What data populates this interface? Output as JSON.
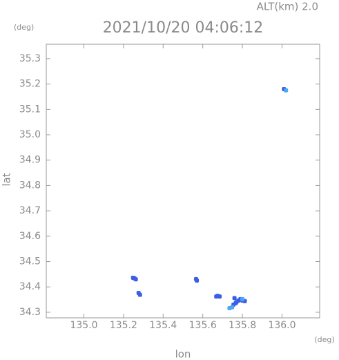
{
  "chart_data": {
    "type": "scatter",
    "title": "2021/10/20 04:06:12",
    "subtitle": "ALT(km) 2.0",
    "x_label": "lon",
    "y_label": "lat",
    "x_unit": "(deg)",
    "y_unit": "(deg)",
    "xlim": [
      134.81,
      136.19
    ],
    "ylim": [
      34.278,
      35.357
    ],
    "xticks": [
      {
        "value": 135,
        "label": "135.0"
      },
      135.2,
      135.4,
      135.6,
      135.8,
      {
        "value": 136,
        "label": "136.0"
      }
    ],
    "yticks": [
      34.3,
      34.4,
      34.5,
      34.6,
      34.7,
      34.8,
      34.9,
      {
        "value": 35,
        "label": "35.0"
      },
      35.1,
      35.2,
      35.3
    ],
    "series": [
      {
        "color": "#3a5ee6",
        "x": [
          135.248,
          135.255,
          135.262,
          135.276,
          135.283,
          135.566,
          135.57,
          135.668,
          135.675,
          135.685,
          135.755,
          135.77,
          135.78,
          135.79,
          135.8,
          135.812,
          135.766,
          135.76,
          136.01
        ],
        "y": [
          34.436,
          34.434,
          34.43,
          34.376,
          34.369,
          34.431,
          34.425,
          34.362,
          34.365,
          34.362,
          34.33,
          34.34,
          34.346,
          34.352,
          34.346,
          34.344,
          34.336,
          34.356,
          35.18
        ]
      },
      {
        "color": "#4fa6f2",
        "x": [
          135.735,
          135.748,
          135.8,
          136.02
        ],
        "y": [
          34.316,
          34.32,
          34.352,
          35.175
        ]
      }
    ]
  }
}
